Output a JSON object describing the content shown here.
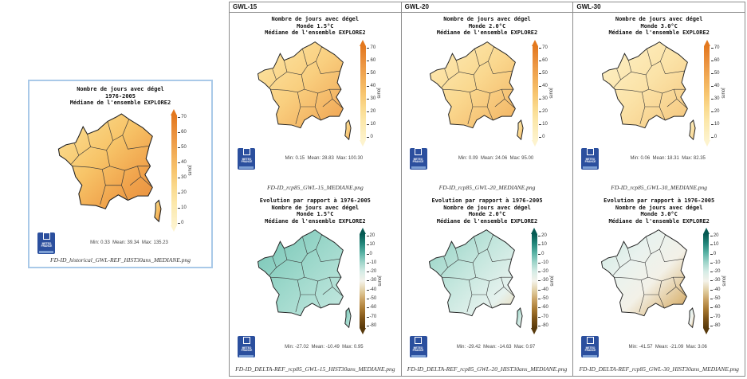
{
  "colors": {
    "panel-border-blue": "#a9c9e8",
    "grid-border": "#8c8c8c",
    "logo-blue": "#2b4f9e",
    "jours-high": "#e3781e",
    "jours-low": "#fdf3cd",
    "delta-pos": "#055952",
    "delta-neg": "#57390b"
  },
  "logo": {
    "line1": "METEO",
    "line2": "FRANCE"
  },
  "colorbars": {
    "jours": {
      "label": "jours",
      "ticks": [
        "70",
        "60",
        "50",
        "40",
        "30",
        "20",
        "10",
        "0"
      ]
    },
    "delta": {
      "label": "jours",
      "ticks": [
        "20",
        "10",
        "0",
        "-10",
        "-20",
        "-30",
        "-40",
        "-50",
        "-60",
        "-70",
        "-80"
      ]
    }
  },
  "left_panel": {
    "title_lines": [
      "Nombre de jours avec dégel",
      "1976-2005",
      "Médiane de l'ensemble EXPLORE2"
    ],
    "stats": "Min: 0.33  Mean: 39.34  Max: 135.23",
    "caption": "FD-ID_historical_GWL-REF_HIST30ans_MEDIANE.png"
  },
  "columns": [
    {
      "header": "GWL-15",
      "top": {
        "title_lines": [
          "Nombre de jours avec dégel",
          "Monde 1.5°C",
          "Médiane de l'ensemble EXPLORE2"
        ],
        "stats": "Min: 0.15  Mean: 28.83  Max: 100.30",
        "caption": "FD-ID_rcp85_GWL-15_MEDIANE.png"
      },
      "bottom": {
        "title_lines": [
          "Evolution par rapport à 1976-2005",
          "Nombre de jours avec dégel",
          "Monde 1.5°C",
          "Médiane de l'ensemble EXPLORE2"
        ],
        "stats": "Min: -27.02  Mean: -10.49  Max: 0.95",
        "caption": "FD-ID_DELTA-REF_rcp85_GWL-15_HIST30ans_MEDIANE.png"
      }
    },
    {
      "header": "GWL-20",
      "top": {
        "title_lines": [
          "Nombre de jours avec dégel",
          "Monde 2.0°C",
          "Médiane de l'ensemble EXPLORE2"
        ],
        "stats": "Min: 0.09  Mean: 24.06  Max: 95.00",
        "caption": "FD-ID_rcp85_GWL-20_MEDIANE.png"
      },
      "bottom": {
        "title_lines": [
          "Evolution par rapport à 1976-2005",
          "Nombre de jours avec dégel",
          "Monde 2.0°C",
          "Médiane de l'ensemble EXPLORE2"
        ],
        "stats": "Min: -29.42  Mean: -14.63  Max: 0.97",
        "caption": "FD-ID_DELTA-REF_rcp85_GWL-20_HIST30ans_MEDIANE.png"
      }
    },
    {
      "header": "GWL-30",
      "top": {
        "title_lines": [
          "Nombre de jours avec dégel",
          "Monde 3.0°C",
          "Médiane de l'ensemble EXPLORE2"
        ],
        "stats": "Min: 0.06  Mean: 18.31  Max: 82.35",
        "caption": "FD-ID_rcp85_GWL-30_MEDIANE.png"
      },
      "bottom": {
        "title_lines": [
          "Evolution par rapport à 1976-2005",
          "Nombre de jours avec dégel",
          "Monde 3.0°C",
          "Médiane de l'ensemble EXPLORE2"
        ],
        "stats": "Min: -41.57  Mean: -21.09  Max: 3.06",
        "caption": "FD-ID_DELTA-REF_rcp85_GWL-30_HIST30ans_MEDIANE.png"
      }
    }
  ]
}
